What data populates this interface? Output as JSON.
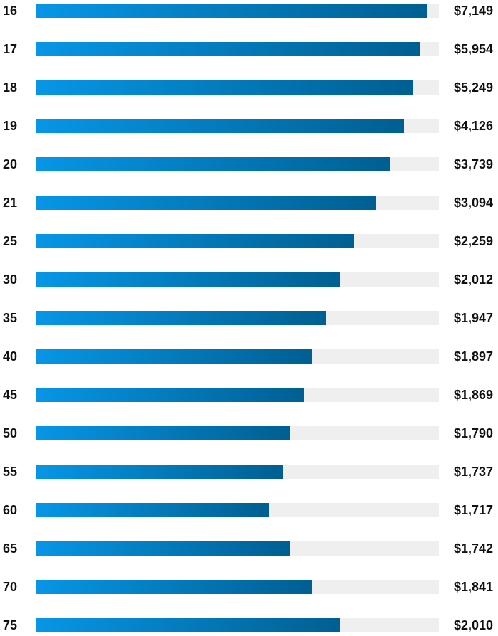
{
  "chart_data": {
    "type": "bar",
    "orientation": "horizontal",
    "categories": [
      "16",
      "17",
      "18",
      "19",
      "20",
      "21",
      "25",
      "30",
      "35",
      "40",
      "45",
      "50",
      "55",
      "60",
      "65",
      "70",
      "75"
    ],
    "values": [
      7149,
      5954,
      5249,
      4126,
      3739,
      3094,
      2259,
      2012,
      1947,
      1897,
      1869,
      1790,
      1737,
      1717,
      1742,
      1841,
      2010
    ],
    "value_labels": [
      "$7,149",
      "$5,954",
      "$5,249",
      "$4,126",
      "$3,739",
      "$3,094",
      "$2,259",
      "$2,012",
      "$1,947",
      "$1,897",
      "$1,869",
      "$1,790",
      "$1,737",
      "$1,717",
      "$1,742",
      "$1,841",
      "$2,010"
    ],
    "bar_fraction": [
      0.97,
      0.952,
      0.935,
      0.914,
      0.878,
      0.843,
      0.79,
      0.755,
      0.72,
      0.684,
      0.667,
      0.631,
      0.614,
      0.578,
      0.631,
      0.684,
      0.755
    ],
    "title": "",
    "xlabel": "",
    "ylabel": "",
    "grid": false,
    "legend": "none",
    "colors": {
      "bar_gradient_start": "#0796e6",
      "bar_gradient_end": "#005f92",
      "track": "#efefef",
      "label": "#111111"
    }
  }
}
